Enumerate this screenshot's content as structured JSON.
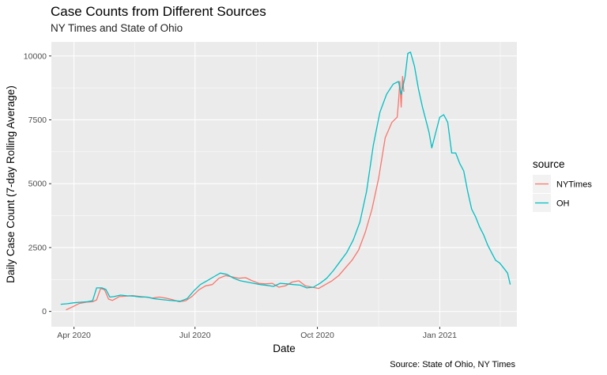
{
  "chart_data": {
    "type": "line",
    "title": "Case Counts from Different Sources",
    "subtitle": "NY Times and State of Ohio",
    "xlabel": "Date",
    "ylabel": "Daily Case Count (7-day Rolling Average)",
    "caption": "Source: State of Ohio, NY Times",
    "xlim": [
      "2020-03-15",
      "2021-02-28"
    ],
    "ylim": [
      -600,
      10550
    ],
    "x_ticks": [
      {
        "date": "2020-04-01",
        "label": "Apr 2020"
      },
      {
        "date": "2020-07-01",
        "label": "Jul 2020"
      },
      {
        "date": "2020-10-01",
        "label": "Oct 2020"
      },
      {
        "date": "2021-01-01",
        "label": "Jan 2021"
      }
    ],
    "y_ticks": [
      0,
      2500,
      5000,
      7500,
      10000
    ],
    "grid": true,
    "legend": {
      "title": "source",
      "position": "right"
    },
    "series": [
      {
        "name": "NYTimes",
        "color": "#F8766D",
        "points": [
          [
            "2020-03-26",
            60
          ],
          [
            "2020-03-31",
            180
          ],
          [
            "2020-04-05",
            310
          ],
          [
            "2020-04-10",
            360
          ],
          [
            "2020-04-15",
            380
          ],
          [
            "2020-04-18",
            450
          ],
          [
            "2020-04-21",
            900
          ],
          [
            "2020-04-24",
            850
          ],
          [
            "2020-04-27",
            480
          ],
          [
            "2020-04-30",
            430
          ],
          [
            "2020-05-05",
            580
          ],
          [
            "2020-05-10",
            600
          ],
          [
            "2020-05-15",
            620
          ],
          [
            "2020-05-20",
            590
          ],
          [
            "2020-05-25",
            560
          ],
          [
            "2020-05-30",
            520
          ],
          [
            "2020-06-04",
            560
          ],
          [
            "2020-06-09",
            520
          ],
          [
            "2020-06-14",
            460
          ],
          [
            "2020-06-19",
            380
          ],
          [
            "2020-06-24",
            420
          ],
          [
            "2020-06-29",
            600
          ],
          [
            "2020-07-04",
            850
          ],
          [
            "2020-07-09",
            1000
          ],
          [
            "2020-07-14",
            1050
          ],
          [
            "2020-07-19",
            1300
          ],
          [
            "2020-07-24",
            1400
          ],
          [
            "2020-07-29",
            1350
          ],
          [
            "2020-08-03",
            1300
          ],
          [
            "2020-08-08",
            1320
          ],
          [
            "2020-08-13",
            1200
          ],
          [
            "2020-08-18",
            1100
          ],
          [
            "2020-08-23",
            1080
          ],
          [
            "2020-08-28",
            1100
          ],
          [
            "2020-09-02",
            950
          ],
          [
            "2020-09-07",
            1000
          ],
          [
            "2020-09-12",
            1150
          ],
          [
            "2020-09-17",
            1200
          ],
          [
            "2020-09-22",
            1000
          ],
          [
            "2020-09-27",
            950
          ],
          [
            "2020-10-02",
            900
          ],
          [
            "2020-10-07",
            1050
          ],
          [
            "2020-10-12",
            1200
          ],
          [
            "2020-10-17",
            1400
          ],
          [
            "2020-10-22",
            1700
          ],
          [
            "2020-10-27",
            2000
          ],
          [
            "2020-11-01",
            2400
          ],
          [
            "2020-11-06",
            3100
          ],
          [
            "2020-11-11",
            4000
          ],
          [
            "2020-11-16",
            5200
          ],
          [
            "2020-11-21",
            6800
          ],
          [
            "2020-11-26",
            7400
          ],
          [
            "2020-11-30",
            7600
          ],
          [
            "2020-12-01",
            8200
          ],
          [
            "2020-12-02",
            9000
          ],
          [
            "2020-12-03",
            8000
          ],
          [
            "2020-12-04",
            9200
          ],
          [
            "2020-12-05",
            8600
          ]
        ]
      },
      {
        "name": "OH",
        "color": "#00BFC4",
        "points": [
          [
            "2020-03-22",
            280
          ],
          [
            "2020-03-27",
            300
          ],
          [
            "2020-04-01",
            340
          ],
          [
            "2020-04-06",
            360
          ],
          [
            "2020-04-11",
            380
          ],
          [
            "2020-04-15",
            420
          ],
          [
            "2020-04-18",
            920
          ],
          [
            "2020-04-22",
            920
          ],
          [
            "2020-04-25",
            860
          ],
          [
            "2020-04-28",
            560
          ],
          [
            "2020-05-01",
            580
          ],
          [
            "2020-05-06",
            640
          ],
          [
            "2020-05-11",
            610
          ],
          [
            "2020-05-16",
            600
          ],
          [
            "2020-05-21",
            560
          ],
          [
            "2020-05-26",
            560
          ],
          [
            "2020-05-31",
            500
          ],
          [
            "2020-06-05",
            470
          ],
          [
            "2020-06-10",
            440
          ],
          [
            "2020-06-15",
            420
          ],
          [
            "2020-06-20",
            400
          ],
          [
            "2020-06-25",
            500
          ],
          [
            "2020-06-30",
            800
          ],
          [
            "2020-07-05",
            1050
          ],
          [
            "2020-07-10",
            1200
          ],
          [
            "2020-07-15",
            1350
          ],
          [
            "2020-07-20",
            1500
          ],
          [
            "2020-07-25",
            1450
          ],
          [
            "2020-07-30",
            1300
          ],
          [
            "2020-08-04",
            1200
          ],
          [
            "2020-08-09",
            1150
          ],
          [
            "2020-08-14",
            1100
          ],
          [
            "2020-08-19",
            1050
          ],
          [
            "2020-08-24",
            1020
          ],
          [
            "2020-08-29",
            980
          ],
          [
            "2020-09-03",
            1100
          ],
          [
            "2020-09-08",
            1080
          ],
          [
            "2020-09-13",
            1050
          ],
          [
            "2020-09-18",
            1030
          ],
          [
            "2020-09-23",
            920
          ],
          [
            "2020-09-28",
            950
          ],
          [
            "2020-10-03",
            1100
          ],
          [
            "2020-10-08",
            1300
          ],
          [
            "2020-10-13",
            1600
          ],
          [
            "2020-10-18",
            1950
          ],
          [
            "2020-10-23",
            2300
          ],
          [
            "2020-10-28",
            2800
          ],
          [
            "2020-11-02",
            3500
          ],
          [
            "2020-11-07",
            4700
          ],
          [
            "2020-11-12",
            6500
          ],
          [
            "2020-11-17",
            7800
          ],
          [
            "2020-11-22",
            8500
          ],
          [
            "2020-11-27",
            8900
          ],
          [
            "2020-12-01",
            9000
          ],
          [
            "2020-12-03",
            8500
          ],
          [
            "2020-12-06",
            9200
          ],
          [
            "2020-12-08",
            10100
          ],
          [
            "2020-12-10",
            10150
          ],
          [
            "2020-12-13",
            9600
          ],
          [
            "2020-12-16",
            8700
          ],
          [
            "2020-12-19",
            8000
          ],
          [
            "2020-12-22",
            7400
          ],
          [
            "2020-12-24",
            7000
          ],
          [
            "2020-12-26",
            6400
          ],
          [
            "2020-12-29",
            7000
          ],
          [
            "2021-01-01",
            7600
          ],
          [
            "2021-01-04",
            7700
          ],
          [
            "2021-01-07",
            7400
          ],
          [
            "2021-01-10",
            6200
          ],
          [
            "2021-01-13",
            6200
          ],
          [
            "2021-01-16",
            5800
          ],
          [
            "2021-01-19",
            5500
          ],
          [
            "2021-01-22",
            4700
          ],
          [
            "2021-01-25",
            4000
          ],
          [
            "2021-01-28",
            3700
          ],
          [
            "2021-01-31",
            3300
          ],
          [
            "2021-02-03",
            3000
          ],
          [
            "2021-02-06",
            2600
          ],
          [
            "2021-02-09",
            2300
          ],
          [
            "2021-02-12",
            2000
          ],
          [
            "2021-02-15",
            1900
          ],
          [
            "2021-02-18",
            1700
          ],
          [
            "2021-02-21",
            1500
          ],
          [
            "2021-02-23",
            1050
          ]
        ]
      }
    ]
  }
}
